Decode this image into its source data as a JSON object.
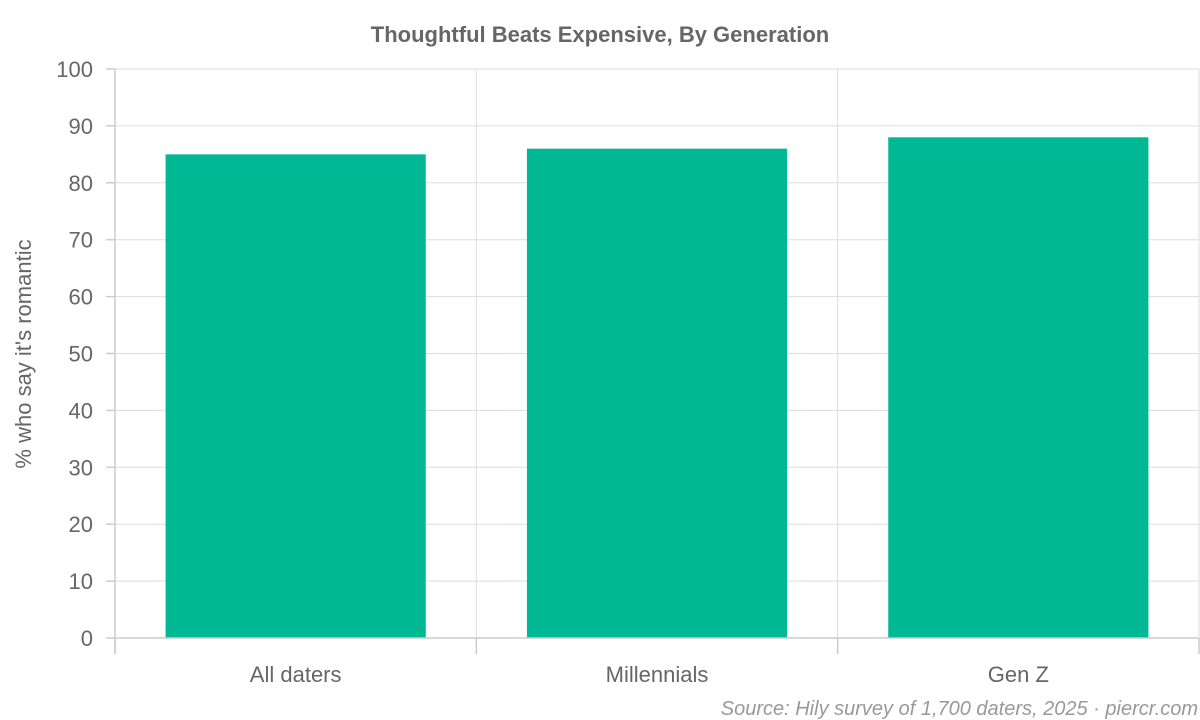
{
  "chart_data": {
    "type": "bar",
    "title": "Thoughtful Beats Expensive, By Generation",
    "xlabel": "",
    "ylabel": "% who say it's romantic",
    "categories": [
      "All daters",
      "Millennials",
      "Gen Z"
    ],
    "values": [
      85,
      86,
      88
    ],
    "ylim": [
      0,
      100
    ],
    "yticks": [
      0,
      10,
      20,
      30,
      40,
      50,
      60,
      70,
      80,
      90,
      100
    ],
    "grid": true,
    "legend": "none",
    "bar_color": "#00b894",
    "source": "Source: Hily survey of 1,700 daters, 2025 · piercr.com"
  }
}
